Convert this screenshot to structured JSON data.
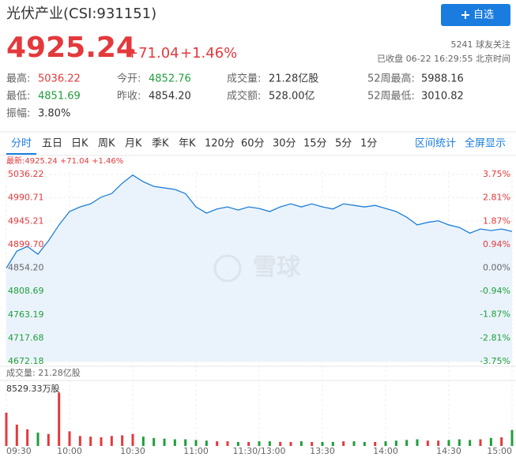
{
  "header": {
    "title": "光伏产业(CSI:931151)",
    "button": "自选",
    "price": "4925.24",
    "change": "+71.04",
    "change_pct": "+1.46%",
    "followers": "5241 球友关注",
    "status": "已收盘 06-22 16:29:55 北京时间",
    "up_color": "#e4393c",
    "down_color": "#1f9e3a"
  },
  "stats": [
    {
      "label": "最高:",
      "value": "5036.22",
      "color": "#e4393c"
    },
    {
      "label": "今开:",
      "value": "4852.76",
      "color": "#1f9e3a"
    },
    {
      "label": "成交量:",
      "value": "21.28亿股",
      "color": "#333333"
    },
    {
      "label": "52周最高:",
      "value": "5988.16",
      "color": "#333333"
    },
    {
      "label": "最低:",
      "value": "4851.69",
      "color": "#1f9e3a"
    },
    {
      "label": "昨收:",
      "value": "4854.20",
      "color": "#333333"
    },
    {
      "label": "成交额:",
      "value": "528.00亿",
      "color": "#333333"
    },
    {
      "label": "52周最低:",
      "value": "3010.82",
      "color": "#333333"
    },
    {
      "label": "振幅:",
      "value": "3.80%",
      "color": "#333333"
    }
  ],
  "tabs": [
    "分时",
    "五日",
    "日K",
    "周K",
    "月K",
    "季K",
    "年K",
    "120分",
    "60分",
    "30分",
    "15分",
    "5分",
    "1分"
  ],
  "active_tab": 0,
  "tab_actions": [
    "区间统计",
    "全屏显示"
  ],
  "chart_data": {
    "type": "line",
    "legend": "最新:4925.24 +71.04 +1.46%",
    "watermark": "雪球",
    "color": "#1f7fd8",
    "fill": "#eaf3fc",
    "x": [
      0,
      5,
      10,
      15,
      20,
      25,
      30,
      35,
      40,
      45,
      50,
      55,
      60,
      65,
      70,
      75,
      80,
      85,
      90,
      95,
      100,
      105,
      110,
      115,
      120,
      125,
      130,
      135,
      140,
      145,
      150,
      155,
      160,
      165,
      170,
      175,
      180,
      185,
      190,
      195,
      200,
      205,
      210,
      215,
      220,
      225,
      230,
      235,
      240
    ],
    "values": [
      4854,
      4887,
      4896,
      4881,
      4907,
      4938,
      4964,
      4973,
      4979,
      4992,
      4999,
      5019,
      5035,
      5022,
      5013,
      5010,
      5007,
      4999,
      4973,
      4961,
      4969,
      4973,
      4967,
      4973,
      4970,
      4964,
      4973,
      4979,
      4973,
      4979,
      4973,
      4969,
      4979,
      4976,
      4973,
      4976,
      4970,
      4964,
      4953,
      4938,
      4943,
      4946,
      4938,
      4933,
      4922,
      4930,
      4927,
      4930,
      4925.24
    ],
    "xlim": [
      0,
      240
    ],
    "xticks": [
      {
        "value": 0,
        "label": "09:30"
      },
      {
        "value": 30,
        "label": "10:00"
      },
      {
        "value": 60,
        "label": "10:30"
      },
      {
        "value": 90,
        "label": "11:00"
      },
      {
        "value": 120,
        "label": "11:30/13:00"
      },
      {
        "value": 150,
        "label": "13:30"
      },
      {
        "value": 180,
        "label": "14:00"
      },
      {
        "value": 210,
        "label": "14:30"
      },
      {
        "value": 240,
        "label": "15:00"
      }
    ],
    "ylim": [
      4672.18,
      5036.22
    ],
    "yticks": [
      5036.22,
      4990.71,
      4945.21,
      {
        "value": 4899.7,
        "label": "4899.70"
      },
      {
        "value": 4854.2,
        "label": "4854.20"
      },
      4808.69,
      4763.19,
      4717.68,
      4672.18
    ],
    "y2lim": [
      -3.75,
      3.75
    ],
    "y2ticks": [
      {
        "value": 3.75,
        "label": "3.75%"
      },
      {
        "value": 2.81,
        "label": "2.81%"
      },
      {
        "value": 1.87,
        "label": "1.87%"
      },
      {
        "value": 0.94,
        "label": "0.94%"
      },
      {
        "value": 0,
        "label": "0.00%"
      },
      {
        "value": -0.94,
        "label": "-0.94%"
      },
      {
        "value": -1.87,
        "label": "-1.87%"
      },
      {
        "value": -2.81,
        "label": "-2.81%"
      },
      {
        "value": -3.75,
        "label": "-3.75%"
      }
    ],
    "grid": true,
    "volume": {
      "label": "成交量: 21.28亿股",
      "values": [
        5000,
        3200,
        2500,
        2000,
        1800,
        8000,
        2200,
        1500,
        1400,
        1300,
        1500,
        1600,
        1800,
        1400,
        1200,
        1100,
        1000,
        1000,
        900,
        800,
        700,
        700,
        600,
        600,
        700,
        700,
        600,
        600,
        700,
        600,
        600,
        600,
        700,
        700,
        600,
        600,
        700,
        800,
        900,
        1000,
        800,
        800,
        900,
        1000,
        900,
        1000,
        1200,
        1300,
        2400
      ],
      "ylim": [
        0,
        8529.33
      ],
      "yticks": [
        {
          "value": 8529.33,
          "label": "8529.33万股"
        }
      ]
    }
  }
}
